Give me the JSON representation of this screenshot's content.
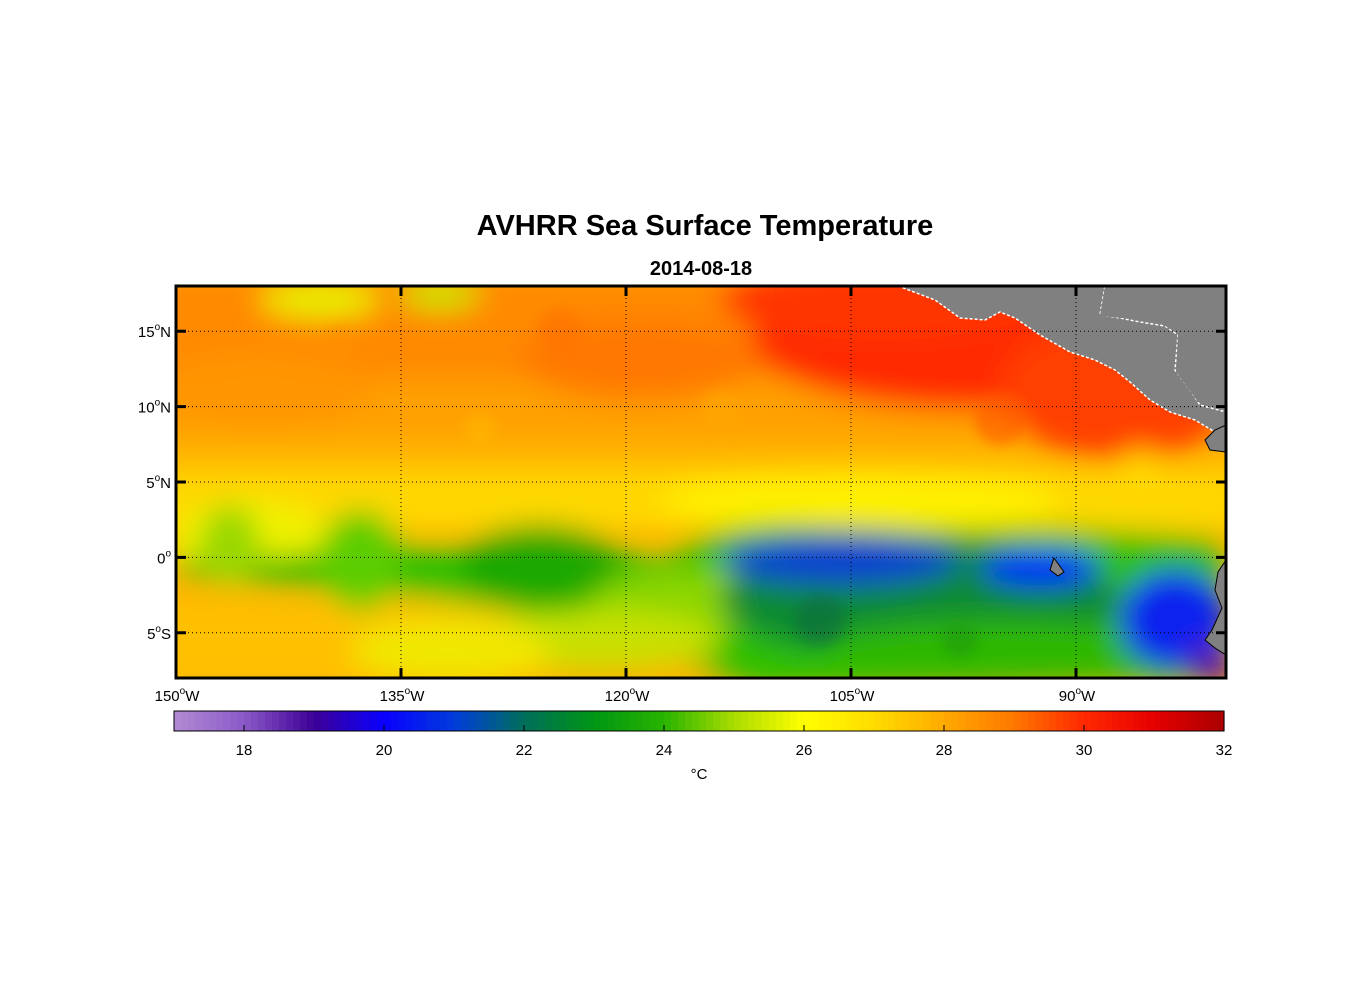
{
  "title": "AVHRR Sea Surface Temperature",
  "date": "2014-08-18",
  "colorbar": {
    "unit_label": "°C",
    "min": 17,
    "max": 32,
    "tick_values": [
      18,
      20,
      22,
      24,
      26,
      28,
      30,
      32
    ],
    "tick_labels": [
      "18",
      "20",
      "22",
      "24",
      "26",
      "28",
      "30",
      "32"
    ]
  },
  "map": {
    "lon_range": [
      -150,
      -80
    ],
    "lat_range": [
      -8,
      18
    ],
    "lon_ticks": [
      {
        "value": -150,
        "num": "150",
        "hem": "W"
      },
      {
        "value": -135,
        "num": "135",
        "hem": "W"
      },
      {
        "value": -120,
        "num": "120",
        "hem": "W"
      },
      {
        "value": -105,
        "num": "105",
        "hem": "W"
      },
      {
        "value": -90,
        "num": "90",
        "hem": "W"
      }
    ],
    "lat_ticks": [
      {
        "value": 15,
        "num": "15",
        "hem": "N"
      },
      {
        "value": 10,
        "num": "10",
        "hem": "N"
      },
      {
        "value": 5,
        "num": "5",
        "hem": "N"
      },
      {
        "value": 0,
        "num": "0",
        "hem": ""
      },
      {
        "value": -5,
        "num": "5",
        "hem": "S"
      }
    ],
    "degree_symbol": "o",
    "land_color": "#808080",
    "grid": "dotted"
  }
}
